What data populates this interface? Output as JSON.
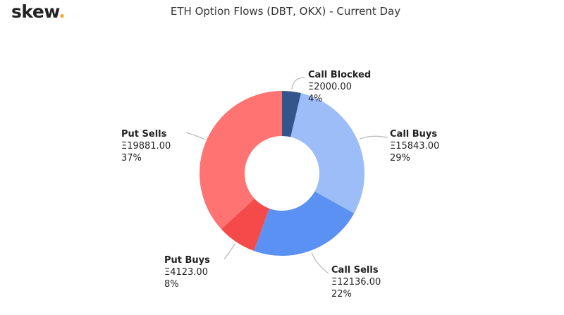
{
  "logo": {
    "text": "skew",
    "dot": "."
  },
  "chart_data": {
    "type": "pie",
    "variant": "donut",
    "title": "ETH Option Flows (DBT, OKX) - Current Day",
    "currency_symbol": "Ξ",
    "slices": [
      {
        "name": "Call Blocked",
        "value": 2000.0,
        "value_label": "Ξ2000.00",
        "pct_label": "4%",
        "color": "#34558b"
      },
      {
        "name": "Call Buys",
        "value": 15843.0,
        "value_label": "Ξ15843.00",
        "pct_label": "29%",
        "color": "#9dbdf9"
      },
      {
        "name": "Call Sells",
        "value": 12136.0,
        "value_label": "Ξ12136.00",
        "pct_label": "22%",
        "color": "#5b91f2"
      },
      {
        "name": "Put Buys",
        "value": 4123.0,
        "value_label": "Ξ4123.00",
        "pct_label": "8%",
        "color": "#f44a4a"
      },
      {
        "name": "Put Sells",
        "value": 19881.0,
        "value_label": "Ξ19881.00",
        "pct_label": "37%",
        "color": "#ff7373"
      }
    ]
  }
}
